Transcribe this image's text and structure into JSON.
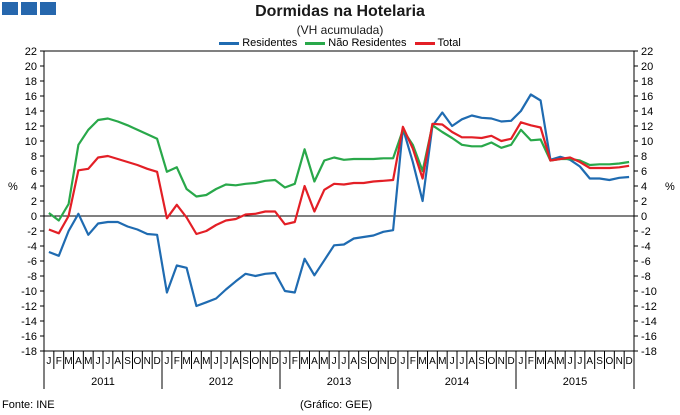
{
  "chart_data": {
    "type": "line",
    "title": "Dormidas na Hotelaria",
    "subtitle": "(VH acumulada)",
    "ylabel": "%",
    "ylim": [
      -18,
      22
    ],
    "yticks": [
      22,
      20,
      18,
      16,
      14,
      12,
      10,
      8,
      6,
      4,
      2,
      0,
      -2,
      -4,
      -6,
      -8,
      -10,
      -12,
      -14,
      -16,
      -18
    ],
    "month_labels": [
      "J",
      "F",
      "M",
      "A",
      "M",
      "J",
      "J",
      "A",
      "S",
      "O",
      "N",
      "D"
    ],
    "years": [
      "2011",
      "2012",
      "2013",
      "2014",
      "2015"
    ],
    "legend_position": "top",
    "series": [
      {
        "name": "Residentes",
        "color": "#1f6bb1",
        "values": [
          -4.8,
          -5.3,
          -2.0,
          0.3,
          -2.5,
          -1.0,
          -0.8,
          -0.8,
          -1.4,
          -1.8,
          -2.4,
          -2.5,
          -10.2,
          -6.6,
          -6.9,
          -12.0,
          -11.5,
          -11.0,
          -9.8,
          -8.7,
          -7.7,
          -8.0,
          -7.7,
          -7.6,
          -10.0,
          -10.2,
          -5.7,
          -7.9,
          -5.9,
          -3.9,
          -3.8,
          -3.0,
          -2.8,
          -2.6,
          -2.1,
          -1.9,
          11.7,
          7.2,
          2.0,
          12.0,
          13.8,
          12.0,
          12.9,
          13.4,
          13.1,
          13.0,
          12.6,
          12.7,
          14.0,
          16.2,
          15.4,
          7.5,
          7.9,
          7.5,
          6.6,
          5.0,
          5.0,
          4.8,
          5.1,
          5.2
        ]
      },
      {
        "name": "Não Residentes",
        "color": "#29a84a",
        "values": [
          0.4,
          -0.6,
          1.6,
          9.5,
          11.5,
          12.8,
          13.0,
          12.6,
          12.1,
          11.5,
          10.9,
          10.3,
          5.9,
          6.5,
          3.6,
          2.6,
          2.8,
          3.6,
          4.2,
          4.1,
          4.3,
          4.4,
          4.7,
          4.8,
          3.8,
          4.3,
          8.9,
          4.6,
          7.4,
          7.8,
          7.5,
          7.6,
          7.6,
          7.6,
          7.7,
          7.7,
          11.5,
          9.5,
          6.0,
          12.1,
          11.2,
          10.4,
          9.5,
          9.3,
          9.3,
          9.8,
          9.1,
          9.5,
          11.5,
          10.1,
          10.2,
          7.4,
          7.6,
          7.6,
          7.4,
          6.8,
          6.9,
          6.9,
          7.0,
          7.2
        ]
      },
      {
        "name": "Total",
        "color": "#e31f26",
        "values": [
          -1.8,
          -2.3,
          0.0,
          6.1,
          6.3,
          7.8,
          8.0,
          7.6,
          7.2,
          6.8,
          6.3,
          5.9,
          -0.3,
          1.5,
          -0.2,
          -2.4,
          -2.0,
          -1.2,
          -0.6,
          -0.4,
          0.2,
          0.3,
          0.6,
          0.6,
          -1.1,
          -0.8,
          4.0,
          0.6,
          3.5,
          4.3,
          4.2,
          4.4,
          4.4,
          4.6,
          4.7,
          4.8,
          11.9,
          9.0,
          5.0,
          12.3,
          12.2,
          11.2,
          10.5,
          10.5,
          10.4,
          10.7,
          10.0,
          10.3,
          12.5,
          12.1,
          11.8,
          7.4,
          7.6,
          7.8,
          7.2,
          6.4,
          6.4,
          6.4,
          6.5,
          6.7
        ]
      }
    ]
  },
  "footer": {
    "source": "Fonte: INE",
    "graphic": "(Gráfico: GEE)"
  }
}
